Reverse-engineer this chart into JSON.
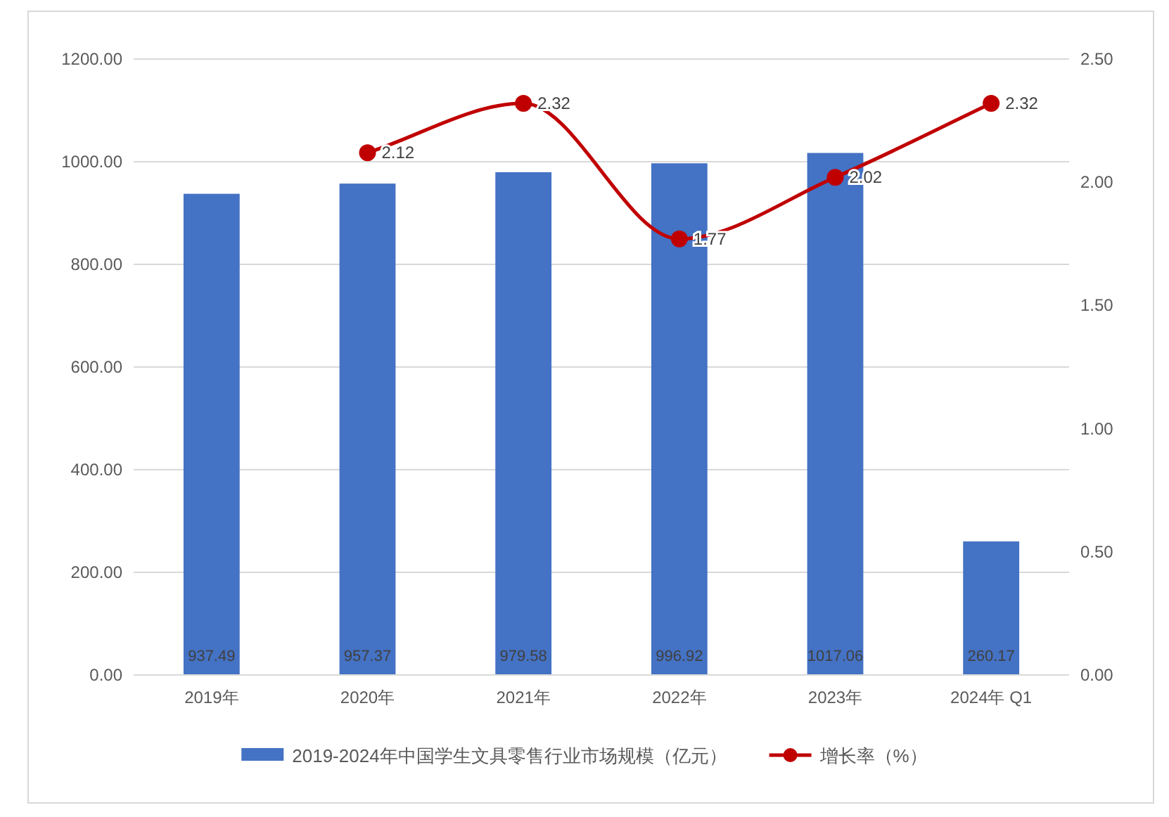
{
  "chart_data": {
    "type": "bar",
    "categories": [
      "2019年",
      "2020年",
      "2021年",
      "2022年",
      "2023年",
      "2024年 Q1"
    ],
    "series": [
      {
        "name": "2019-2024年中国学生文具零售行业市场规模（亿元）",
        "color": "#4472c4",
        "values": [
          937.49,
          957.37,
          979.58,
          996.92,
          1017.06,
          260.17
        ]
      },
      {
        "name": "增长率（%）",
        "type": "line",
        "axis": "y2",
        "color": "#c00000",
        "values": [
          null,
          2.12,
          2.32,
          1.77,
          2.02,
          2.32
        ]
      }
    ],
    "ylim": [
      0,
      1200
    ],
    "yticks": [
      {
        "value": 0,
        "label": "0.00"
      },
      {
        "value": 200,
        "label": "200.00"
      },
      {
        "value": 400,
        "label": "400.00"
      },
      {
        "value": 600,
        "label": "600.00"
      },
      {
        "value": 800,
        "label": "800.00"
      },
      {
        "value": 1000,
        "label": "1000.00"
      },
      {
        "value": 1200,
        "label": "1200.00"
      }
    ],
    "y2lim": [
      0,
      2.5
    ],
    "y2ticks": [
      {
        "value": 0,
        "label": "0.00"
      },
      {
        "value": 0.5,
        "label": "0.50"
      },
      {
        "value": 1,
        "label": "1.00"
      },
      {
        "value": 1.5,
        "label": "1.50"
      },
      {
        "value": 2,
        "label": "2.00"
      },
      {
        "value": 2.5,
        "label": "2.50"
      }
    ],
    "marker": "circle",
    "data_labels": true,
    "grid": "y",
    "legend": "bottom"
  }
}
